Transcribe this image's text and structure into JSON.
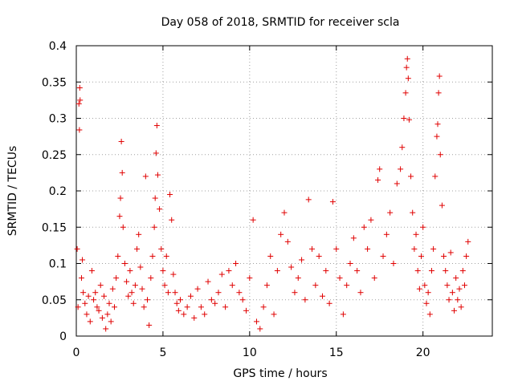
{
  "chart_data": {
    "type": "scatter",
    "title": "Day 058 of 2018, SRMTID for receiver scla",
    "xlabel": "GPS time / hours",
    "ylabel": "SRMTID / TECUs",
    "xlim": [
      0,
      24
    ],
    "ylim": [
      0,
      0.4
    ],
    "x_ticks": [
      0,
      5,
      10,
      15,
      20
    ],
    "x_tick_labels": [
      "0",
      "5",
      "10",
      "15",
      "20"
    ],
    "y_ticks": [
      0,
      0.05,
      0.1,
      0.15,
      0.2,
      0.25,
      0.3,
      0.35,
      0.4
    ],
    "y_tick_labels": [
      "0",
      "0.05",
      "0.1",
      "0.15",
      "0.2",
      "0.25",
      "0.3",
      "0.35",
      "0.4"
    ],
    "grid": true,
    "marker": "+",
    "color": "#e00000",
    "series": [
      {
        "name": "SRMTID",
        "points": [
          [
            0.05,
            0.12
          ],
          [
            0.1,
            0.04
          ],
          [
            0.15,
            0.32
          ],
          [
            0.18,
            0.284
          ],
          [
            0.2,
            0.342
          ],
          [
            0.22,
            0.325
          ],
          [
            0.3,
            0.08
          ],
          [
            0.35,
            0.105
          ],
          [
            0.4,
            0.06
          ],
          [
            0.5,
            0.045
          ],
          [
            0.6,
            0.03
          ],
          [
            0.7,
            0.055
          ],
          [
            0.8,
            0.02
          ],
          [
            0.9,
            0.09
          ],
          [
            1.0,
            0.05
          ],
          [
            1.1,
            0.06
          ],
          [
            1.2,
            0.04
          ],
          [
            1.3,
            0.035
          ],
          [
            1.4,
            0.07
          ],
          [
            1.5,
            0.025
          ],
          [
            1.6,
            0.055
          ],
          [
            1.7,
            0.01
          ],
          [
            1.8,
            0.03
          ],
          [
            1.9,
            0.045
          ],
          [
            2.0,
            0.02
          ],
          [
            2.1,
            0.065
          ],
          [
            2.2,
            0.04
          ],
          [
            2.3,
            0.08
          ],
          [
            2.4,
            0.11
          ],
          [
            2.5,
            0.165
          ],
          [
            2.55,
            0.19
          ],
          [
            2.6,
            0.268
          ],
          [
            2.65,
            0.225
          ],
          [
            2.7,
            0.15
          ],
          [
            2.8,
            0.1
          ],
          [
            2.9,
            0.075
          ],
          [
            3.0,
            0.055
          ],
          [
            3.1,
            0.09
          ],
          [
            3.2,
            0.06
          ],
          [
            3.3,
            0.045
          ],
          [
            3.4,
            0.07
          ],
          [
            3.5,
            0.12
          ],
          [
            3.6,
            0.14
          ],
          [
            3.7,
            0.095
          ],
          [
            3.8,
            0.065
          ],
          [
            3.9,
            0.04
          ],
          [
            4.0,
            0.22
          ],
          [
            4.1,
            0.05
          ],
          [
            4.2,
            0.015
          ],
          [
            4.3,
            0.08
          ],
          [
            4.4,
            0.11
          ],
          [
            4.5,
            0.15
          ],
          [
            4.55,
            0.19
          ],
          [
            4.6,
            0.252
          ],
          [
            4.65,
            0.29
          ],
          [
            4.7,
            0.222
          ],
          [
            4.8,
            0.175
          ],
          [
            4.9,
            0.12
          ],
          [
            5.0,
            0.09
          ],
          [
            5.1,
            0.07
          ],
          [
            5.2,
            0.11
          ],
          [
            5.3,
            0.06
          ],
          [
            5.4,
            0.195
          ],
          [
            5.5,
            0.16
          ],
          [
            5.6,
            0.085
          ],
          [
            5.7,
            0.06
          ],
          [
            5.8,
            0.045
          ],
          [
            5.9,
            0.035
          ],
          [
            6.0,
            0.05
          ],
          [
            6.2,
            0.03
          ],
          [
            6.4,
            0.04
          ],
          [
            6.6,
            0.055
          ],
          [
            6.8,
            0.025
          ],
          [
            7.0,
            0.065
          ],
          [
            7.2,
            0.04
          ],
          [
            7.4,
            0.03
          ],
          [
            7.6,
            0.075
          ],
          [
            7.8,
            0.05
          ],
          [
            8.0,
            0.045
          ],
          [
            8.2,
            0.06
          ],
          [
            8.4,
            0.085
          ],
          [
            8.6,
            0.04
          ],
          [
            8.8,
            0.09
          ],
          [
            9.0,
            0.07
          ],
          [
            9.2,
            0.1
          ],
          [
            9.4,
            0.06
          ],
          [
            9.6,
            0.05
          ],
          [
            9.8,
            0.035
          ],
          [
            10.0,
            0.08
          ],
          [
            10.2,
            0.16
          ],
          [
            10.4,
            0.02
          ],
          [
            10.6,
            0.01
          ],
          [
            10.8,
            0.04
          ],
          [
            11.0,
            0.07
          ],
          [
            11.2,
            0.11
          ],
          [
            11.4,
            0.03
          ],
          [
            11.6,
            0.09
          ],
          [
            11.8,
            0.14
          ],
          [
            12.0,
            0.17
          ],
          [
            12.2,
            0.13
          ],
          [
            12.4,
            0.095
          ],
          [
            12.6,
            0.06
          ],
          [
            12.8,
            0.08
          ],
          [
            13.0,
            0.105
          ],
          [
            13.2,
            0.05
          ],
          [
            13.4,
            0.188
          ],
          [
            13.6,
            0.12
          ],
          [
            13.8,
            0.07
          ],
          [
            14.0,
            0.11
          ],
          [
            14.2,
            0.055
          ],
          [
            14.4,
            0.09
          ],
          [
            14.6,
            0.045
          ],
          [
            14.8,
            0.185
          ],
          [
            15.0,
            0.12
          ],
          [
            15.2,
            0.08
          ],
          [
            15.4,
            0.03
          ],
          [
            15.6,
            0.07
          ],
          [
            15.8,
            0.1
          ],
          [
            16.0,
            0.135
          ],
          [
            16.2,
            0.09
          ],
          [
            16.4,
            0.06
          ],
          [
            16.6,
            0.15
          ],
          [
            16.8,
            0.12
          ],
          [
            17.0,
            0.16
          ],
          [
            17.2,
            0.08
          ],
          [
            17.4,
            0.215
          ],
          [
            17.5,
            0.23
          ],
          [
            17.7,
            0.11
          ],
          [
            17.9,
            0.14
          ],
          [
            18.1,
            0.17
          ],
          [
            18.3,
            0.1
          ],
          [
            18.5,
            0.21
          ],
          [
            18.7,
            0.23
          ],
          [
            18.8,
            0.26
          ],
          [
            18.9,
            0.3
          ],
          [
            19.0,
            0.335
          ],
          [
            19.05,
            0.37
          ],
          [
            19.1,
            0.382
          ],
          [
            19.15,
            0.355
          ],
          [
            19.2,
            0.298
          ],
          [
            19.3,
            0.22
          ],
          [
            19.4,
            0.17
          ],
          [
            19.5,
            0.12
          ],
          [
            19.6,
            0.14
          ],
          [
            19.7,
            0.09
          ],
          [
            19.8,
            0.065
          ],
          [
            19.9,
            0.11
          ],
          [
            20.0,
            0.15
          ],
          [
            20.1,
            0.07
          ],
          [
            20.2,
            0.045
          ],
          [
            20.3,
            0.06
          ],
          [
            20.4,
            0.03
          ],
          [
            20.5,
            0.09
          ],
          [
            20.6,
            0.12
          ],
          [
            20.7,
            0.22
          ],
          [
            20.8,
            0.275
          ],
          [
            20.85,
            0.292
          ],
          [
            20.9,
            0.335
          ],
          [
            20.95,
            0.358
          ],
          [
            21.0,
            0.25
          ],
          [
            21.1,
            0.18
          ],
          [
            21.2,
            0.11
          ],
          [
            21.3,
            0.09
          ],
          [
            21.4,
            0.07
          ],
          [
            21.5,
            0.05
          ],
          [
            21.6,
            0.115
          ],
          [
            21.7,
            0.06
          ],
          [
            21.8,
            0.035
          ],
          [
            21.9,
            0.08
          ],
          [
            22.0,
            0.05
          ],
          [
            22.1,
            0.065
          ],
          [
            22.2,
            0.04
          ],
          [
            22.3,
            0.09
          ],
          [
            22.4,
            0.07
          ],
          [
            22.5,
            0.11
          ],
          [
            22.6,
            0.13
          ]
        ]
      }
    ]
  }
}
